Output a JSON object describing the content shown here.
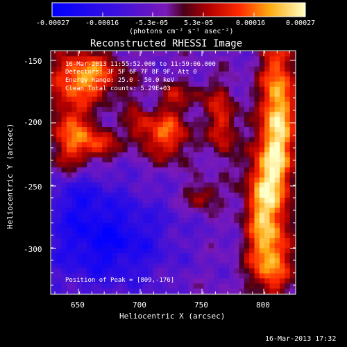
{
  "colorbar": {
    "ticks": [
      "-0.00027",
      "-0.00016",
      "-5.3e-05",
      "5.3e-05",
      "0.00016",
      "0.00027"
    ],
    "unit_label": "(photons cm⁻² s⁻¹ asec⁻²)"
  },
  "plot": {
    "title": "Reconstructed RHESSI Image",
    "xlabel": "Heliocentric X (arcsec)",
    "ylabel": "Heliocentric Y (arcsec)",
    "xticks": [
      "650",
      "700",
      "750",
      "800"
    ],
    "yticks": [
      "-150",
      "-200",
      "-250",
      "-300"
    ],
    "annotations": [
      "16-Mar-2013 11:55:52.000 to 11:59:06.000",
      "Detectors: 3F 5F 6F 7F 8F 9F, Att 0",
      "Energy Range: 25.0 - 50.0 keV",
      "Clean    Total counts: 5.29E+03"
    ],
    "peak_label": "Position of Peak = [809,-176]"
  },
  "footer": {
    "timestamp": "16-Mar-2013 17:32"
  },
  "colors": {
    "background": "#000000",
    "text": "#ffffff"
  }
}
